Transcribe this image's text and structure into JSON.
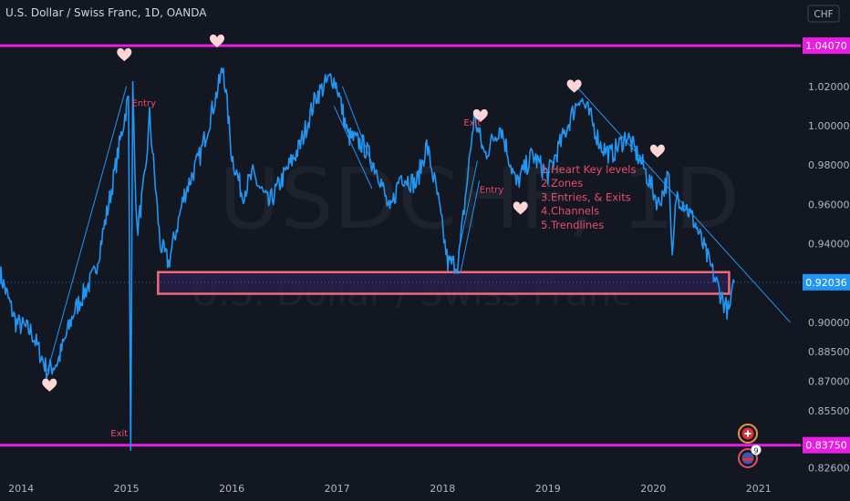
{
  "header": {
    "title": "U.S. Dollar / Swiss Franc, 1D, OANDA",
    "currency_button": "CHF"
  },
  "watermark": {
    "symbol": "USDCHF, 1D",
    "name": "U.S. Dollar / Swiss Franc"
  },
  "colors": {
    "background": "#131722",
    "price_line": "#2196f3",
    "magenta": "#e91ee3",
    "zone_border": "#f06a78",
    "zone_fill": "#2a1f4a",
    "annotation": "#e84d6a",
    "heart": "#ffd6d6"
  },
  "chart_data": {
    "type": "line",
    "title": "U.S. Dollar / Swiss Franc, 1D, OANDA",
    "xlabel": "",
    "ylabel": "",
    "x_ticks": [
      "2014",
      "2015",
      "2016",
      "2017",
      "2018",
      "2019",
      "2020",
      "2021"
    ],
    "y_ticks": [
      "1.02000",
      "1.00000",
      "0.98000",
      "0.96000",
      "0.94000",
      "0.90000",
      "0.88500",
      "0.87000",
      "0.85500",
      "0.82600"
    ],
    "ylim": [
      0.823,
      1.05
    ],
    "grid": false,
    "series": [
      {
        "x": [
          2013.8,
          2013.95,
          2014.1,
          2014.25,
          2014.35,
          2014.5,
          2014.7,
          2014.85,
          2014.95,
          2015.02,
          2015.04,
          2015.06,
          2015.1,
          2015.18,
          2015.22,
          2015.32,
          2015.4,
          2015.55,
          2015.7,
          2015.85,
          2015.92,
          2016.0,
          2016.1,
          2016.2,
          2016.35,
          2016.5,
          2016.65,
          2016.8,
          2016.95,
          2017.0,
          2017.1,
          2017.25,
          2017.4,
          2017.5,
          2017.6,
          2017.75,
          2017.85,
          2017.95,
          2018.05,
          2018.15,
          2018.3,
          2018.4,
          2018.55,
          2018.7,
          2018.85,
          2019.0,
          2019.15,
          2019.3,
          2019.4,
          2019.5,
          2019.6,
          2019.75,
          2019.9,
          2020.05,
          2020.15,
          2020.18,
          2020.22,
          2020.3,
          2020.4,
          2020.5,
          2020.6,
          2020.67,
          2020.72,
          2020.77
        ],
        "y": [
          0.925,
          0.9,
          0.895,
          0.875,
          0.88,
          0.905,
          0.925,
          0.965,
          0.995,
          1.015,
          0.835,
          1.02,
          0.945,
          0.975,
          1.005,
          0.94,
          0.93,
          0.965,
          0.985,
          1.015,
          1.03,
          0.985,
          0.965,
          0.975,
          0.96,
          0.975,
          0.99,
          1.015,
          1.025,
          1.02,
          0.995,
          0.99,
          0.975,
          0.955,
          0.975,
          0.97,
          0.99,
          0.965,
          0.93,
          0.93,
          1.005,
          0.985,
          1.0,
          0.97,
          0.985,
          0.975,
          0.995,
          1.015,
          1.005,
          0.99,
          0.985,
          0.995,
          0.98,
          0.96,
          0.975,
          0.93,
          0.965,
          0.96,
          0.95,
          0.935,
          0.92,
          0.91,
          0.905,
          0.92
        ]
      }
    ],
    "price_labels": [
      {
        "value": 1.0407,
        "text": "1.04070",
        "style": "magenta"
      },
      {
        "value": 0.92036,
        "text": "0.92036",
        "style": "blue"
      },
      {
        "value": 0.8375,
        "text": "0.83750",
        "style": "magenta"
      }
    ],
    "horizontal_lines": [
      1.0407,
      0.8375
    ],
    "zone": {
      "x_start": 2015.3,
      "x_end": 2020.72,
      "y_low": 0.9145,
      "y_high": 0.9255
    },
    "hearts": [
      {
        "x": 2014.27,
        "y": 0.868
      },
      {
        "x": 2014.98,
        "y": 1.036
      },
      {
        "x": 2015.86,
        "y": 1.043
      },
      {
        "x": 2018.36,
        "y": 1.005
      },
      {
        "x": 2018.74,
        "y": 0.958
      },
      {
        "x": 2019.25,
        "y": 1.02
      },
      {
        "x": 2020.04,
        "y": 0.987
      }
    ],
    "trendlines": [
      {
        "x1": 2014.25,
        "y1": 0.875,
        "x2": 2015.0,
        "y2": 1.02
      },
      {
        "x1": 2017.05,
        "y1": 1.02,
        "x2": 2017.35,
        "y2": 0.978
      },
      {
        "x1": 2016.97,
        "y1": 1.01,
        "x2": 2017.33,
        "y2": 0.968
      },
      {
        "x1": 2018.15,
        "y1": 0.935,
        "x2": 2018.33,
        "y2": 0.982
      },
      {
        "x1": 2018.17,
        "y1": 0.925,
        "x2": 2018.35,
        "y2": 0.972
      },
      {
        "x1": 2019.27,
        "y1": 1.02,
        "x2": 2021.3,
        "y2": 0.9
      }
    ],
    "annotations": [
      {
        "text": "Entry",
        "x": 2015.05,
        "y": 1.01
      },
      {
        "text": "Exit",
        "x": 2018.2,
        "y": 1.0
      },
      {
        "text": "Entry",
        "x": 2018.35,
        "y": 0.966
      },
      {
        "text": "Exit",
        "x": 2014.85,
        "y": 0.842
      }
    ],
    "notes": [
      "1.Heart Key levels",
      "2.Zones",
      "3.Entries, & Exits",
      "4.Channels",
      "5.Trendlines"
    ]
  }
}
